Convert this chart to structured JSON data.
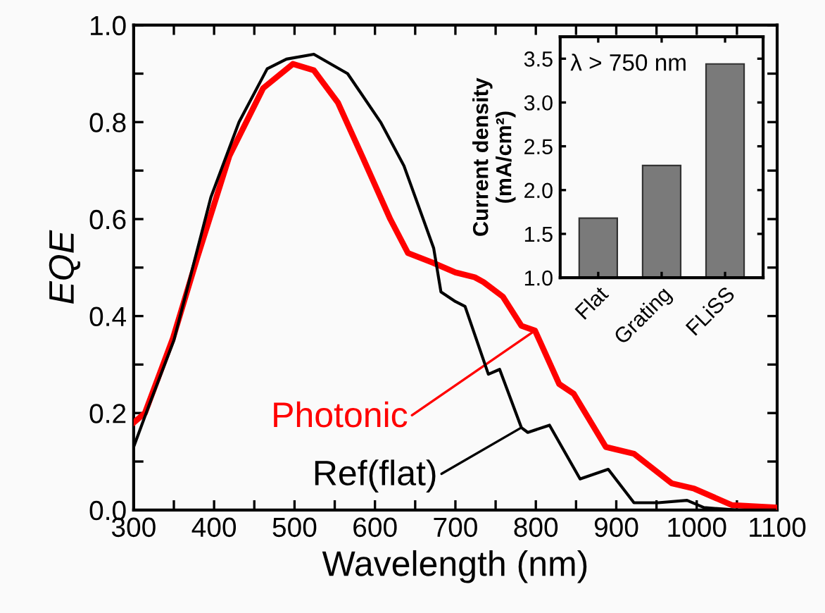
{
  "chart_data": [
    {
      "type": "line",
      "xlabel": "Wavelength (nm)",
      "ylabel": "EQE",
      "xlim": [
        300,
        1100
      ],
      "ylim": [
        0,
        1.0
      ],
      "xticks": [
        300,
        {
          "value": 350,
          "label": null
        },
        400,
        {
          "value": 450,
          "label": null
        },
        500,
        {
          "value": 550,
          "label": null
        },
        600,
        {
          "value": 650,
          "label": null
        },
        700,
        {
          "value": 750,
          "label": null
        },
        800,
        {
          "value": 850,
          "label": null
        },
        900,
        {
          "value": 950,
          "label": null
        },
        1000,
        {
          "value": 1050,
          "label": null
        },
        1100
      ],
      "yticks": [
        {
          "value": 0,
          "label": "0.0"
        },
        {
          "value": 0.1,
          "label": null
        },
        0.2,
        {
          "value": 0.3,
          "label": null
        },
        0.4,
        {
          "value": 0.5,
          "label": null
        },
        0.6,
        {
          "value": 0.7,
          "label": null
        },
        0.8,
        {
          "value": 0.9,
          "label": null
        },
        {
          "value": 1.0,
          "label": "1.0"
        }
      ],
      "grid": false,
      "legend": false,
      "series": [
        {
          "name": "Ref(flat)",
          "color": "#000000",
          "x": [
            300,
            320,
            350,
            396,
            431,
            466,
            490,
            524,
            566,
            607,
            636,
            660,
            673,
            680,
            682,
            700,
            712,
            741,
            755,
            782,
            790,
            817,
            855,
            890,
            922,
            952,
            988,
            1009,
            1050,
            1097
          ],
          "values": [
            0.13,
            0.22,
            0.35,
            0.645,
            0.8,
            0.91,
            0.93,
            0.94,
            0.9,
            0.8,
            0.71,
            0.6,
            0.54,
            0.47,
            0.45,
            0.43,
            0.42,
            0.28,
            0.29,
            0.17,
            0.16,
            0.175,
            0.064,
            0.084,
            0.015,
            0.015,
            0.02,
            0.005,
            0.0,
            0.0
          ]
        },
        {
          "name": "Photonic",
          "color": "#ff0000",
          "x": [
            300,
            314,
            349,
            379,
            419,
            461,
            498,
            524,
            554,
            584,
            619,
            641,
            672,
            700,
            724,
            735,
            759,
            782,
            799,
            829,
            847,
            887,
            922,
            969,
            997,
            1044,
            1100
          ],
          "values": [
            0.18,
            0.2,
            0.355,
            0.52,
            0.73,
            0.87,
            0.92,
            0.907,
            0.84,
            0.73,
            0.6,
            0.53,
            0.51,
            0.49,
            0.48,
            0.47,
            0.44,
            0.38,
            0.37,
            0.26,
            0.24,
            0.13,
            0.116,
            0.055,
            0.044,
            0.01,
            0.005
          ]
        }
      ]
    },
    {
      "type": "bar",
      "ylabel": "Current density\n(mA/cm²)",
      "categories": [
        "Flat",
        "Grating",
        "FLiSS"
      ],
      "values": [
        1.68,
        2.28,
        3.44
      ],
      "color": "#7a7a7a",
      "ylim": [
        1.0,
        3.75
      ],
      "yticks": [
        {
          "value": 1.0,
          "label": "1.0"
        },
        1.5,
        {
          "value": 2.0,
          "label": "2.0"
        },
        2.5,
        {
          "value": 3.0,
          "label": "3.0"
        },
        3.5
      ],
      "grid": false,
      "annotations": [
        "λ > 750 nm"
      ]
    }
  ]
}
